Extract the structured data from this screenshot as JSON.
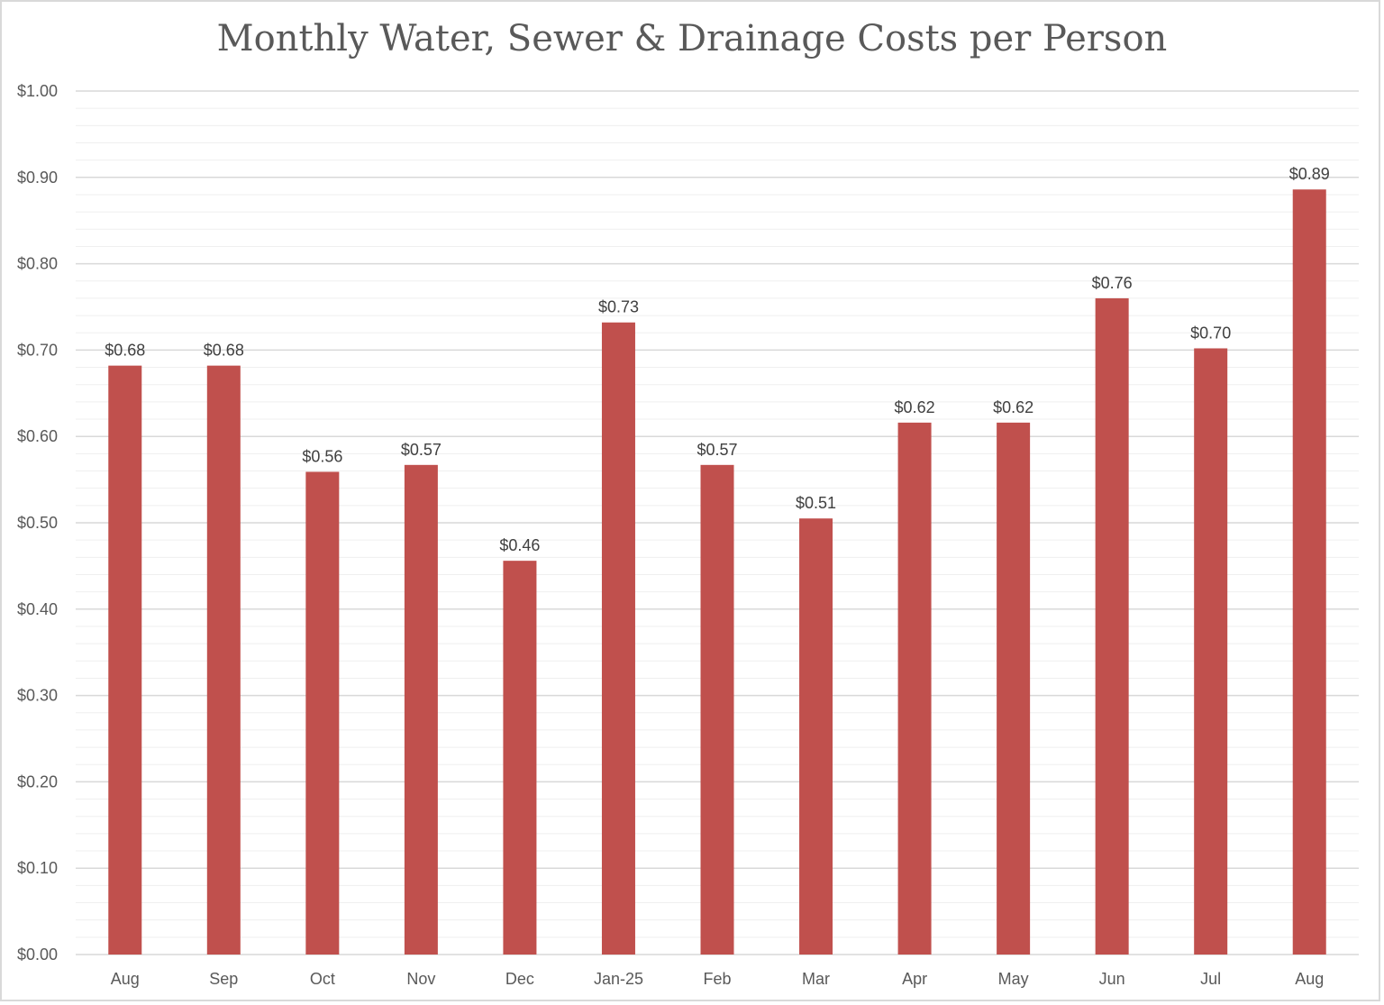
{
  "chart_data": {
    "type": "bar",
    "title": "Monthly Water, Sewer & Drainage Costs per Person",
    "categories": [
      "Aug",
      "Sep",
      "Oct",
      "Nov",
      "Dec",
      "Jan-25",
      "Feb",
      "Mar",
      "Apr",
      "May",
      "Jun",
      "Jul",
      "Aug"
    ],
    "values": [
      0.682,
      0.682,
      0.559,
      0.567,
      0.456,
      0.732,
      0.567,
      0.505,
      0.616,
      0.616,
      0.76,
      0.702,
      0.886
    ],
    "data_labels": [
      "$0.68",
      "$0.68",
      "$0.56",
      "$0.57",
      "$0.46",
      "$0.73",
      "$0.57",
      "$0.51",
      "$0.62",
      "$0.62",
      "$0.76",
      "$0.70",
      "$0.89"
    ],
    "ylim": [
      0,
      1.0
    ],
    "yticks": [
      0,
      0.1,
      0.2,
      0.3,
      0.4,
      0.5,
      0.6,
      0.7,
      0.8,
      0.9,
      1.0
    ],
    "ytick_labels": [
      "$0.00",
      "$0.10",
      "$0.20",
      "$0.30",
      "$0.40",
      "$0.50",
      "$0.60",
      "$0.70",
      "$0.80",
      "$0.90",
      "$1.00"
    ],
    "xlabel": "",
    "ylabel": "",
    "grid": true,
    "minor_grid": true,
    "legend": "none",
    "bar_color": "#c0504d",
    "gridline_color": "#d9d9d9",
    "minor_gridline_color": "#efefef",
    "text_color": "#595959"
  }
}
